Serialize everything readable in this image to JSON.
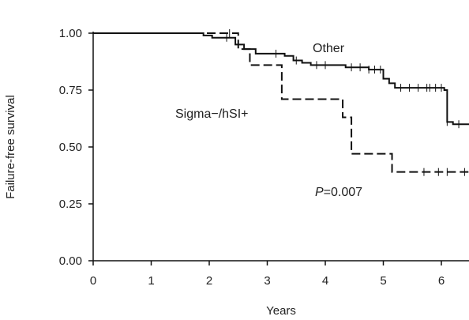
{
  "chart_data": {
    "type": "line",
    "subtype": "kaplan-meier-step",
    "xlabel": "Years",
    "ylabel": "Failure-free survival",
    "xlim": [
      0,
      6.5
    ],
    "ylim": [
      0,
      1
    ],
    "x_ticks": [
      0,
      1,
      2,
      3,
      4,
      5,
      6
    ],
    "y_ticks": [
      0.0,
      0.25,
      0.5,
      0.75,
      1.0
    ],
    "y_tick_labels": [
      "0.00",
      "0.25",
      "0.50",
      "0.75",
      "1.00"
    ],
    "grid": false,
    "series": [
      {
        "name": "Other",
        "style": "solid",
        "color": "#111111",
        "steps": [
          [
            0,
            1.0
          ],
          [
            1.9,
            0.99
          ],
          [
            2.05,
            0.98
          ],
          [
            2.45,
            0.95
          ],
          [
            2.6,
            0.93
          ],
          [
            2.8,
            0.91
          ],
          [
            3.3,
            0.9
          ],
          [
            3.45,
            0.88
          ],
          [
            3.6,
            0.87
          ],
          [
            3.75,
            0.86
          ],
          [
            4.35,
            0.85
          ],
          [
            4.75,
            0.84
          ],
          [
            5.0,
            0.8
          ],
          [
            5.1,
            0.78
          ],
          [
            5.2,
            0.76
          ],
          [
            6.05,
            0.75
          ],
          [
            6.1,
            0.61
          ],
          [
            6.2,
            0.6
          ]
        ],
        "end_x": 6.5,
        "censored_x": [
          2.3,
          3.15,
          3.5,
          3.85,
          4.0,
          4.45,
          4.6,
          4.75,
          4.85,
          4.95,
          5.3,
          5.45,
          5.6,
          5.75,
          5.8,
          5.9,
          6.0,
          6.1,
          6.3
        ]
      },
      {
        "name": "Sigma−/hSI+",
        "style": "dashed",
        "color": "#111111",
        "steps": [
          [
            0,
            1.0
          ],
          [
            2.5,
            0.93
          ],
          [
            2.7,
            0.86
          ],
          [
            3.25,
            0.71
          ],
          [
            4.3,
            0.63
          ],
          [
            4.45,
            0.47
          ],
          [
            5.15,
            0.39
          ]
        ],
        "end_x": 6.5,
        "censored_x": [
          2.35,
          5.7,
          5.95,
          6.1,
          6.4
        ]
      }
    ],
    "annotations": {
      "other": "Other",
      "sigma": "Sigma−/hSI+",
      "p_symbol": "P",
      "p_value": "=0.007"
    }
  }
}
